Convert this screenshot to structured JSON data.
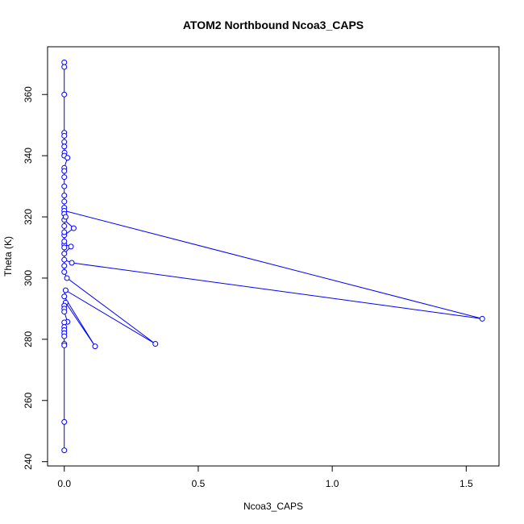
{
  "chart_data": {
    "type": "scatter",
    "title": "ATOM2 Northbound Ncoa3_CAPS",
    "x_label": "Ncoa3_CAPS",
    "y_label": "Theta (K)",
    "series": [
      {
        "name": "Ncoa3_CAPS",
        "color": "#0000ff",
        "x": [
          0,
          0,
          0,
          0,
          0,
          0,
          0,
          0.001,
          0,
          0.012,
          0,
          0,
          0,
          0,
          0,
          0,
          0,
          0,
          1.56,
          0.028,
          0,
          0,
          0.025,
          0,
          0,
          0.035,
          0,
          0,
          0.005,
          0,
          0,
          0,
          0,
          0,
          0,
          0.01,
          0.34,
          0.005,
          0,
          0.115,
          0.005,
          0,
          0,
          0,
          0.012,
          0,
          0,
          0,
          0,
          0,
          0,
          0,
          0,
          0
        ],
        "values": [
          370.5,
          369,
          360,
          347.5,
          346.5,
          344.5,
          343,
          341,
          340,
          339.3,
          336,
          335,
          333,
          330,
          327,
          325,
          323,
          322,
          286.7,
          305,
          306,
          308,
          310.3,
          311,
          314,
          316.3,
          319,
          321,
          320,
          317,
          315,
          312,
          310,
          304,
          302,
          300,
          278.5,
          296,
          294,
          277.7,
          292,
          291,
          290,
          289,
          285.7,
          285.5,
          284,
          283,
          282,
          281,
          278.5,
          278,
          253,
          243.7
        ]
      }
    ],
    "xlim": [
      -0.0624,
      1.6224
    ],
    "ylim": [
      238.6,
      375.6
    ],
    "xticks": [
      {
        "value": 0,
        "label": "0.0"
      },
      0.5,
      {
        "value": 1,
        "label": "1.0"
      },
      1.5
    ],
    "yticks": [
      240,
      260,
      280,
      300,
      320,
      340,
      360
    ]
  }
}
